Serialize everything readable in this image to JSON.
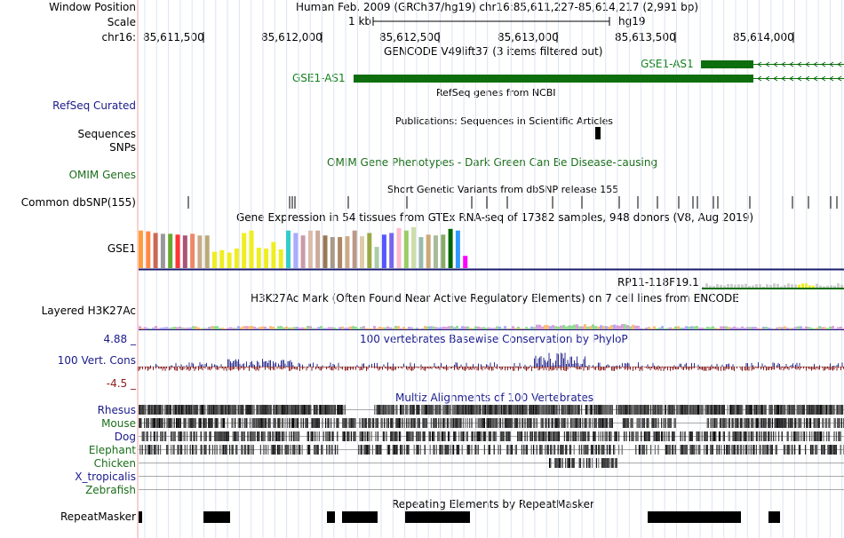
{
  "header": {
    "window_position_label": "Window Position",
    "scale_label": "Scale",
    "chrom_label": "chr16:",
    "assembly_position": "Human Feb. 2009 (GRCh37/hg19)   chr16:85,611,227-85,614,217 (2,991 bp)",
    "scale_value": "1 kb",
    "assembly_short": "hg19",
    "ruler_ticks": [
      "85,611,500",
      "85,612,000",
      "85,612,500",
      "85,613,000",
      "85,613,500",
      "85,614,000"
    ]
  },
  "tracks": {
    "gencode": {
      "title": "GENCODE V49lift37 (3 items filtered out)",
      "gene1": "GSE1-AS1",
      "gene2": "GSE1-AS1"
    },
    "refseq": {
      "label": "RefSeq Curated",
      "title": "RefSeq genes from NCBI"
    },
    "publications": {
      "label1": "Sequences",
      "title": "Publications: Sequences in Scientific Articles"
    },
    "snps": {
      "label": "SNPs"
    },
    "omim": {
      "label": "OMIM Genes",
      "title": "OMIM Gene Phenotypes - Dark Green Can Be Disease-causing"
    },
    "dbsnp": {
      "label": "Common dbSNP(155)",
      "title": "Short Genetic Variants from dbSNP release 155"
    },
    "gtex": {
      "title": "Gene Expression in 54 tissues from GTEx RNA-seq of 17382 samples, 948 donors (V8, Aug 2019)",
      "gene": "GSE1",
      "gene2": "RP11-118F19.1"
    },
    "h3k27ac": {
      "label": "Layered H3K27Ac",
      "title": "H3K27Ac Mark (Often Found Near Active Regulatory Elements) on 7 cell lines from ENCODE"
    },
    "conservation": {
      "label": "100 Vert. Cons",
      "max": "4.88 _",
      "min": "-4.5 _",
      "title": "100 vertebrates Basewise Conservation by PhyloP"
    },
    "multiz": {
      "title": "Multiz Alignments of 100 Vertebrates",
      "species": [
        "Rhesus",
        "Mouse",
        "Dog",
        "Elephant",
        "Chicken",
        "X_tropicalis",
        "Zebrafish"
      ]
    },
    "repeatmasker": {
      "label": "RepeatMasker",
      "title": "Repeating Elements by RepeatMasker"
    }
  },
  "colors": {
    "gene_green": "#0d6e0d",
    "label_blue": "#1a1a8c",
    "label_green": "#1a6e1a",
    "cons_pos": "#2d2d8f",
    "cons_neg": "#8b1a1a",
    "gtex_bars": [
      "#ff9e3d",
      "#ff8844",
      "#cc6655",
      "#999999",
      "#66aa33",
      "#ff3333",
      "#aa5577",
      "#ee8866",
      "#ccaa88",
      "#bbaa77",
      "#eeee22",
      "#eeee22",
      "#eeee22",
      "#eeee22",
      "#eeee22",
      "#eeee22",
      "#eeee22",
      "#eeee22",
      "#eeee22",
      "#eeee22",
      "#33cccc",
      "#aaaaff",
      "#cc99aa",
      "#ddbbaa",
      "#ccaa99",
      "#997755",
      "#aa9988",
      "#aa8866",
      "#ccaa88",
      "#bb9988",
      "#ddccaa",
      "#99aa44",
      "#aaccaa",
      "#5555ff",
      "#7766ee",
      "#ffbbcc",
      "#99cc66",
      "#ccddaa",
      "#99bbaa",
      "#ccaa77",
      "#aabb99",
      "#88aa66",
      "#006600",
      "#3399ff",
      "#ff00ff"
    ],
    "gtex_values": [
      0.92,
      0.9,
      0.86,
      0.84,
      0.84,
      0.82,
      0.8,
      0.84,
      0.8,
      0.8,
      0.4,
      0.44,
      0.38,
      0.48,
      0.86,
      0.92,
      0.5,
      0.48,
      0.64,
      0.46,
      0.92,
      0.86,
      0.8,
      0.92,
      0.92,
      0.8,
      0.76,
      0.76,
      0.78,
      0.92,
      0.78,
      0.86,
      0.52,
      0.82,
      0.86,
      0.98,
      0.92,
      1.0,
      0.76,
      0.82,
      0.8,
      0.82,
      0.96,
      0.92,
      0.3
    ]
  }
}
